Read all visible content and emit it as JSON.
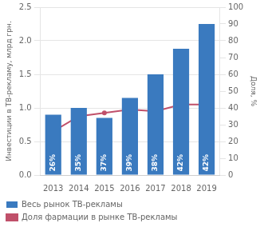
{
  "chart_data": {
    "type": "bar",
    "categories": [
      "2013",
      "2014",
      "2015",
      "2016",
      "2017",
      "2018",
      "2019"
    ],
    "series": [
      {
        "name": "Весь рынок ТВ-рекламы",
        "type": "bar",
        "color": "#3a7abf",
        "values": [
          0.9,
          1.0,
          0.85,
          1.15,
          1.5,
          1.88,
          2.25
        ]
      },
      {
        "name": "Доля фармации в рынке ТВ-рекламы",
        "type": "line",
        "color": "#c0506a",
        "marker": "circle",
        "axis": "y2",
        "values": [
          26,
          35,
          37,
          39,
          38,
          42,
          42
        ],
        "data_labels": true,
        "value_labels": [
          "26%",
          "35%",
          "37%",
          "39%",
          "38%",
          "42%",
          "42%"
        ]
      }
    ],
    "ylabel": "Инвестиции в ТВ-рекламу, млрд грн.",
    "y2label": "Доля, %",
    "ylim": [
      0,
      2.5
    ],
    "yticks": [
      {
        "value": 0,
        "label": "0.0"
      },
      0.5,
      {
        "value": 1,
        "label": "1.0"
      },
      1.5,
      {
        "value": 2,
        "label": "2.0"
      },
      2.5
    ],
    "y2lim": [
      0,
      100
    ],
    "y2ticks": [
      0,
      10,
      20,
      30,
      40,
      50,
      60,
      70,
      80,
      90,
      100
    ],
    "grid": true,
    "legend": "bottom"
  }
}
